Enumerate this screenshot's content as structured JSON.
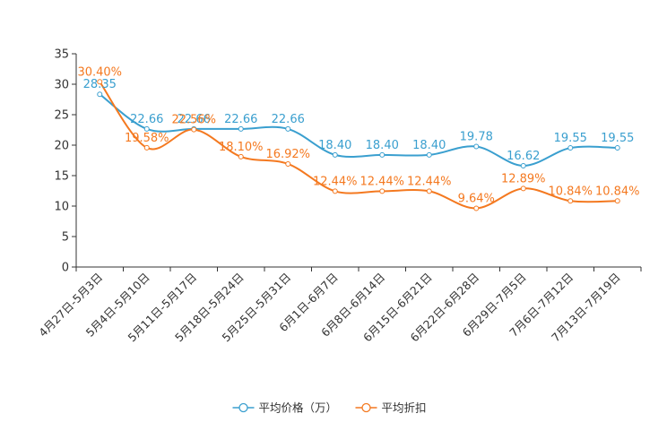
{
  "chart_data": {
    "type": "line",
    "title": "",
    "xlabel": "",
    "ylabel": "",
    "ylim": [
      0,
      35
    ],
    "yticks": [
      0,
      5,
      10,
      15,
      20,
      25,
      30,
      35
    ],
    "grid": false,
    "legend_position": "bottom",
    "categories": [
      "4月27日-5月3日",
      "5月4日-5月10日",
      "5月11日-5月17日",
      "5月18日-5月24日",
      "5月25日-5月31日",
      "6月1日-6月7日",
      "6月8日-6月14日",
      "6月15日-6月21日",
      "6月22日-6月28日",
      "6月29日-7月5日",
      "7月6日-7月12日",
      "7月13日-7月19日"
    ],
    "series": [
      {
        "name": "平均价格（万）",
        "color": "#3a9fcf",
        "values": [
          28.35,
          22.66,
          22.66,
          22.66,
          22.66,
          18.4,
          18.4,
          18.4,
          19.78,
          16.62,
          19.55,
          19.55
        ],
        "labels": [
          "28.35",
          "22.66",
          "22.66",
          "22.66",
          "22.66",
          "18.40",
          "18.40",
          "18.40",
          "19.78",
          "16.62",
          "19.55",
          "19.55"
        ]
      },
      {
        "name": "平均折扣",
        "color": "#f47920",
        "values": [
          30.4,
          19.58,
          22.56,
          18.1,
          16.92,
          12.44,
          12.44,
          12.44,
          9.64,
          12.89,
          10.84,
          10.84
        ],
        "labels": [
          "30.40%",
          "19.58%",
          "22.56%",
          "18.10%",
          "16.92%",
          "12.44%",
          "12.44%",
          "12.44%",
          "9.64%",
          "12.89%",
          "10.84%",
          "10.84%"
        ]
      }
    ]
  }
}
